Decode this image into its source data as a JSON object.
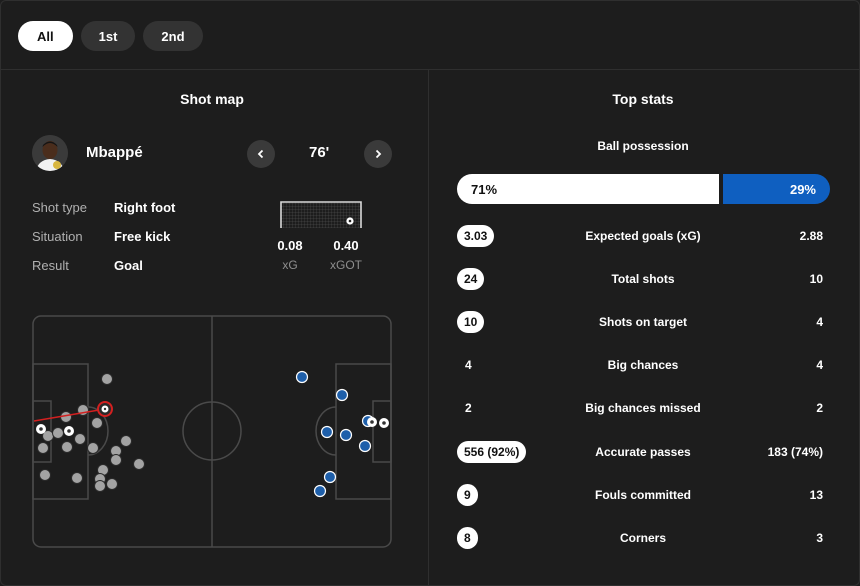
{
  "tabs": [
    {
      "label": "All",
      "active": true
    },
    {
      "label": "1st",
      "active": false
    },
    {
      "label": "2nd",
      "active": false
    }
  ],
  "shot_map": {
    "title": "Shot map",
    "player": {
      "name": "Mbappé",
      "minute": "76'"
    },
    "details": [
      {
        "label": "Shot type",
        "value": "Right foot"
      },
      {
        "label": "Situation",
        "value": "Free kick"
      },
      {
        "label": "Result",
        "value": "Goal"
      }
    ],
    "metrics": [
      {
        "label": "xG",
        "value": "0.08"
      },
      {
        "label": "xGOT",
        "value": "0.40"
      }
    ],
    "colors": {
      "home": "#9a9a9a",
      "away": "#1e5faa",
      "selected": "#d32020"
    }
  },
  "top_stats": {
    "title": "Top stats",
    "possession": {
      "label": "Ball possession",
      "home": "71%",
      "away": "29%",
      "home_share": 0.71
    },
    "rows": [
      {
        "label": "Expected goals (xG)",
        "home": "3.03",
        "away": "2.88",
        "pill": true
      },
      {
        "label": "Total shots",
        "home": "24",
        "away": "10",
        "pill": true
      },
      {
        "label": "Shots on target",
        "home": "10",
        "away": "4",
        "pill": true
      },
      {
        "label": "Big chances",
        "home": "4",
        "away": "4",
        "pill": false
      },
      {
        "label": "Big chances missed",
        "home": "2",
        "away": "2",
        "pill": false
      },
      {
        "label": "Accurate passes",
        "home": "556 (92%)",
        "away": "183 (74%)",
        "pill": true
      },
      {
        "label": "Fouls committed",
        "home": "9",
        "away": "13",
        "pill": true
      },
      {
        "label": "Corners",
        "home": "8",
        "away": "3",
        "pill": true
      }
    ]
  }
}
